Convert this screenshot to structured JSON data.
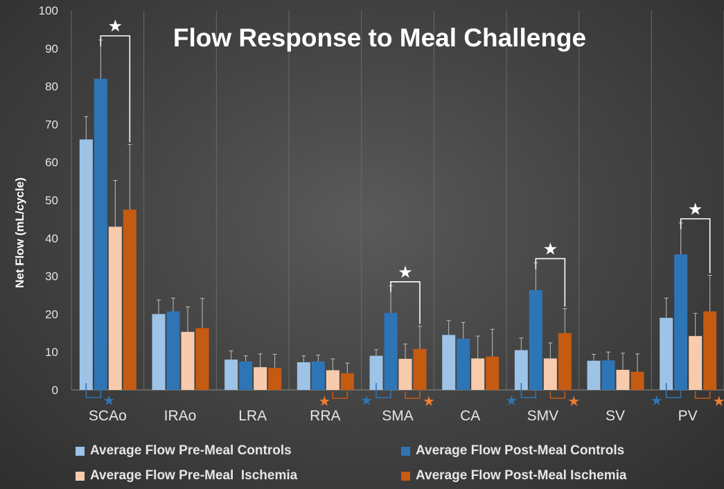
{
  "chart_data": {
    "type": "bar",
    "title": "Flow Response to Meal Challenge",
    "xlabel": "",
    "ylabel": "Net Flow (mL/cycle)",
    "ylim": [
      0,
      100
    ],
    "yticks": [
      0,
      10,
      20,
      30,
      40,
      50,
      60,
      70,
      80,
      90,
      100
    ],
    "grid": "vertical",
    "categories": [
      "SCAo",
      "IRAo",
      "LRA",
      "RRA",
      "SMA",
      "CA",
      "SMV",
      "SV",
      "PV"
    ],
    "series": [
      {
        "name": "Average Flow Pre-Meal Controls",
        "color": "#9dc3e6",
        "values": [
          66,
          20,
          8,
          7.3,
          9,
          14.5,
          10.5,
          7.7,
          19
        ],
        "errors": [
          6,
          3.7,
          2.3,
          1.7,
          1.6,
          3.8,
          3.2,
          1.7,
          5.2
        ]
      },
      {
        "name": "Average Flow Post-Meal Controls",
        "color": "#2e75b6",
        "values": [
          82,
          20.7,
          7.5,
          7.5,
          20.3,
          13.5,
          26.3,
          7.8,
          35.7
        ],
        "errors": [
          10.2,
          3.5,
          1.5,
          1.7,
          7.1,
          4.3,
          7.2,
          2.2,
          8.3
        ]
      },
      {
        "name": "Average Flow Pre-Meal  Ischemia",
        "color": "#f8cbad",
        "values": [
          43,
          15.3,
          6,
          5.2,
          8.2,
          8.3,
          8.3,
          5.3,
          14.2
        ],
        "errors": [
          12.2,
          6.6,
          3.5,
          3,
          3.9,
          5.9,
          4.1,
          4.4,
          6
        ]
      },
      {
        "name": "Average Flow Post-Meal Ischemia",
        "color": "#c55a11",
        "values": [
          47.5,
          16.3,
          5.8,
          4.4,
          10.8,
          8.8,
          15,
          4.8,
          20.7
        ],
        "errors": [
          17.2,
          7.8,
          3.6,
          2.7,
          6,
          7.2,
          6.4,
          4.7,
          9.5
        ]
      }
    ],
    "significance": {
      "marker": "★",
      "bracketed": [
        "SCAo",
        "SMA",
        "SMV",
        "PV"
      ],
      "control_marks": [
        "SCAo",
        "SMA",
        "SMV",
        "PV"
      ],
      "ischemia_marks": [
        "RRA",
        "SMA",
        "SMV",
        "PV"
      ]
    }
  },
  "legend": [
    {
      "label": "Average Flow Pre-Meal Controls",
      "color": "#9dc3e6"
    },
    {
      "label": "Average Flow Post-Meal Controls",
      "color": "#2e75b6"
    },
    {
      "label": "Average Flow Pre-Meal  Ischemia",
      "color": "#f8cbad"
    },
    {
      "label": "Average Flow Post-Meal Ischemia",
      "color": "#c55a11"
    }
  ]
}
